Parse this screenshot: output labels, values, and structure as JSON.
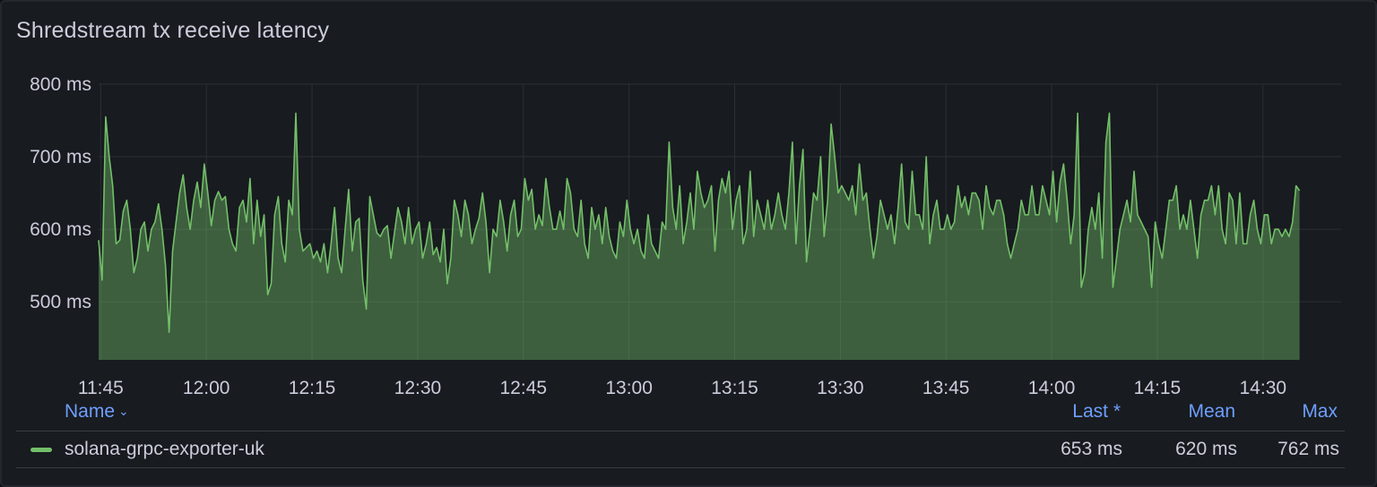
{
  "panel": {
    "title": "Shredstream tx receive latency"
  },
  "chart_data": {
    "type": "area",
    "title": "Shredstream tx receive latency",
    "unit": "ms",
    "y_ticks": [
      "800 ms",
      "700 ms",
      "600 ms",
      "500 ms"
    ],
    "y_tick_values": [
      800,
      700,
      600,
      500
    ],
    "ylim": [
      420,
      800
    ],
    "x_ticks": [
      "11:45",
      "12:00",
      "12:15",
      "12:30",
      "12:45",
      "13:00",
      "13:15",
      "13:30",
      "13:45",
      "14:00",
      "14:15",
      "14:30"
    ],
    "x_tick_minutes": [
      705,
      720,
      735,
      750,
      765,
      780,
      795,
      810,
      825,
      840,
      855,
      870
    ],
    "xlim_minutes": [
      704.7,
      881.1
    ],
    "grid": true,
    "series": [
      {
        "name": "solana-grpc-exporter-uk",
        "color": "#73bf69",
        "x_start_minutes": 704.7,
        "x_step_minutes": 0.5,
        "values": [
          585,
          530,
          755,
          700,
          660,
          580,
          585,
          625,
          640,
          600,
          540,
          560,
          600,
          610,
          570,
          600,
          610,
          635,
          600,
          550,
          458,
          570,
          610,
          650,
          675,
          630,
          600,
          640,
          665,
          630,
          690,
          650,
          605,
          640,
          652,
          640,
          645,
          600,
          580,
          570,
          630,
          640,
          610,
          670,
          580,
          640,
          590,
          620,
          510,
          525,
          620,
          645,
          580,
          555,
          640,
          620,
          760,
          600,
          570,
          575,
          580,
          560,
          570,
          555,
          580,
          540,
          580,
          630,
          560,
          540,
          600,
          655,
          570,
          610,
          615,
          530,
          490,
          645,
          620,
          595,
          590,
          600,
          605,
          560,
          595,
          630,
          610,
          580,
          630,
          580,
          600,
          610,
          560,
          580,
          610,
          565,
          575,
          555,
          600,
          525,
          560,
          640,
          620,
          590,
          640,
          620,
          580,
          600,
          615,
          650,
          610,
          540,
          600,
          590,
          640,
          610,
          570,
          620,
          640,
          590,
          600,
          670,
          640,
          655,
          600,
          620,
          605,
          670,
          630,
          600,
          600,
          625,
          600,
          670,
          650,
          600,
          590,
          640,
          580,
          560,
          630,
          600,
          620,
          580,
          630,
          590,
          570,
          560,
          610,
          590,
          640,
          600,
          580,
          600,
          570,
          560,
          620,
          580,
          570,
          560,
          610,
          600,
          720,
          630,
          600,
          660,
          580,
          610,
          650,
          600,
          680,
          650,
          630,
          640,
          660,
          570,
          640,
          670,
          650,
          680,
          600,
          640,
          660,
          580,
          600,
          680,
          590,
          640,
          620,
          600,
          640,
          600,
          620,
          650,
          620,
          600,
          650,
          720,
          580,
          660,
          710,
          555,
          600,
          650,
          640,
          700,
          590,
          640,
          745,
          700,
          650,
          660,
          650,
          640,
          660,
          620,
          690,
          640,
          650,
          600,
          560,
          590,
          640,
          620,
          600,
          620,
          580,
          630,
          690,
          610,
          600,
          680,
          620,
          620,
          600,
          700,
          580,
          620,
          640,
          600,
          600,
          620,
          600,
          610,
          660,
          630,
          645,
          620,
          650,
          650,
          640,
          600,
          660,
          630,
          620,
          640,
          640,
          620,
          580,
          560,
          580,
          600,
          640,
          620,
          620,
          660,
          620,
          620,
          660,
          640,
          620,
          680,
          610,
          665,
          690,
          640,
          580,
          620,
          760,
          520,
          540,
          600,
          630,
          600,
          650,
          560,
          720,
          760,
          520,
          560,
          600,
          620,
          640,
          610,
          680,
          620,
          610,
          600,
          590,
          520,
          610,
          580,
          560,
          600,
          640,
          640,
          660,
          600,
          620,
          600,
          640,
          600,
          560,
          620,
          640,
          640,
          660,
          620,
          660,
          600,
          580,
          650,
          640,
          580,
          650,
          580,
          580,
          620,
          640,
          600,
          580,
          620,
          620,
          580,
          600,
          600,
          590,
          600,
          590,
          610,
          660,
          653
        ]
      }
    ]
  },
  "legend": {
    "col_name": "Name",
    "col_last": "Last *",
    "col_mean": "Mean",
    "col_max": "Max",
    "rows": [
      {
        "name": "solana-grpc-exporter-uk",
        "color": "#73bf69",
        "last": "653 ms",
        "mean": "620 ms",
        "max": "762 ms"
      }
    ]
  }
}
